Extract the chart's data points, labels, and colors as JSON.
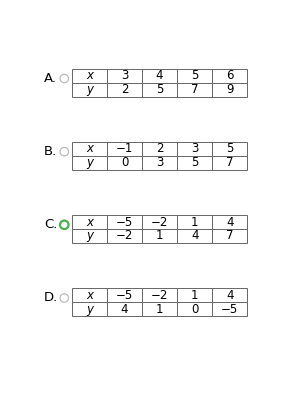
{
  "options": [
    "A.",
    "B.",
    "C.",
    "D."
  ],
  "selected": [
    false,
    false,
    true,
    false
  ],
  "tables": [
    {
      "x_vals": [
        "x",
        "3",
        "4",
        "5",
        "6"
      ],
      "y_vals": [
        "y",
        "2",
        "5",
        "7",
        "9"
      ]
    },
    {
      "x_vals": [
        "x",
        "−1",
        "2",
        "3",
        "5"
      ],
      "y_vals": [
        "y",
        "0",
        "3",
        "5",
        "7"
      ]
    },
    {
      "x_vals": [
        "x",
        "−5",
        "−2",
        "1",
        "4"
      ],
      "y_vals": [
        "y",
        "−2",
        "1",
        "4",
        "7"
      ]
    },
    {
      "x_vals": [
        "x",
        "−5",
        "−2",
        "1",
        "4"
      ],
      "y_vals": [
        "y",
        "4",
        "1",
        "0",
        "−5"
      ]
    }
  ],
  "radio_color_unselected": "#bbbbbb",
  "radio_color_selected": "#4caf50",
  "background_color": "#ffffff",
  "text_color": "#000000",
  "cell_fontsize": 8.5,
  "option_fontsize": 9.5
}
